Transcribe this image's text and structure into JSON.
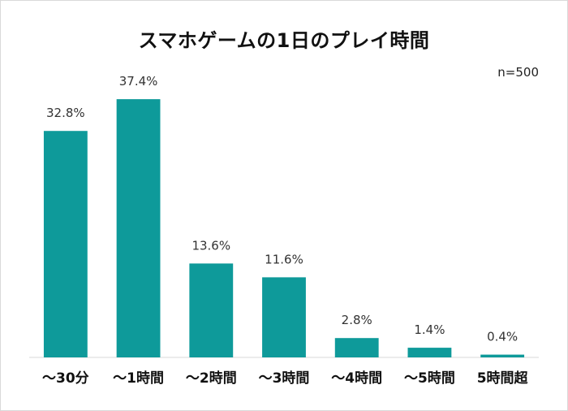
{
  "colors": {
    "bar": "#0E9A9A",
    "axis": "#d9d9d9"
  },
  "chart_data": {
    "type": "bar",
    "title": "スマホゲームの1日のプレイ時間",
    "note": "n=500",
    "categories": [
      "～30分",
      "～1時間",
      "～2時間",
      "～3時間",
      "～4時間",
      "～5時間",
      "5時間超"
    ],
    "values": [
      32.8,
      37.4,
      13.6,
      11.6,
      2.8,
      1.4,
      0.4
    ],
    "value_labels": [
      "32.8%",
      "37.4%",
      "13.6%",
      "11.6%",
      "2.8%",
      "1.4%",
      "0.4%"
    ],
    "ylim": [
      0,
      40
    ],
    "grid": false,
    "legend": "none"
  }
}
